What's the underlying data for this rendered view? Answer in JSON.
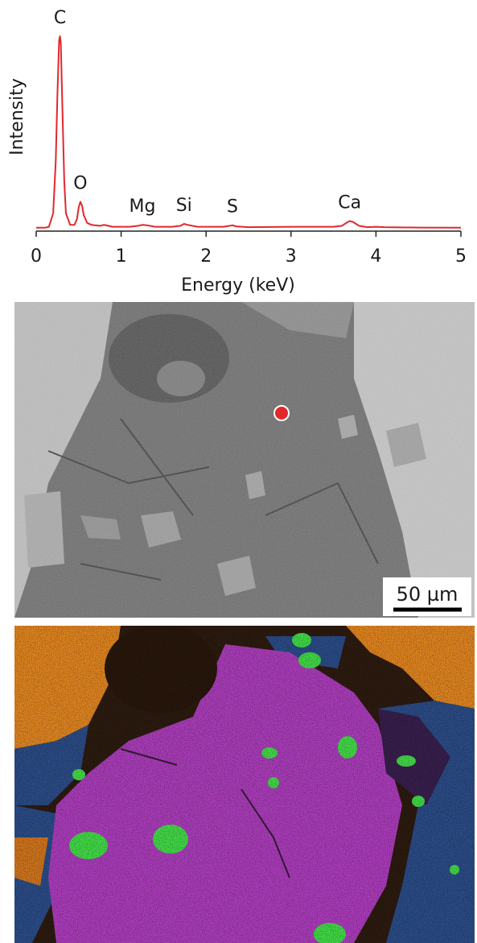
{
  "chart_data": {
    "type": "line",
    "xlabel": "Energy (keV)",
    "ylabel": "Intensity",
    "x": [
      0,
      0.1,
      0.15,
      0.2,
      0.23,
      0.25,
      0.27,
      0.28,
      0.29,
      0.31,
      0.33,
      0.35,
      0.4,
      0.45,
      0.48,
      0.5,
      0.52,
      0.54,
      0.56,
      0.6,
      0.65,
      0.75,
      0.8,
      0.9,
      1.1,
      1.2,
      1.25,
      1.3,
      1.4,
      1.6,
      1.7,
      1.74,
      1.78,
      1.9,
      2.2,
      2.28,
      2.31,
      2.35,
      2.5,
      3.0,
      3.5,
      3.6,
      3.65,
      3.69,
      3.73,
      3.8,
      3.9,
      4.0,
      4.1,
      4.5,
      5.0
    ],
    "values": [
      0.5,
      0.5,
      1,
      8,
      35,
      70,
      98,
      100,
      96,
      60,
      25,
      8,
      2,
      2,
      5,
      11,
      14,
      12,
      7,
      3,
      2,
      1.5,
      2,
      1,
      1,
      1.5,
      2,
      1.8,
      1,
      1,
      1.5,
      2.5,
      2,
      1,
      1,
      1.5,
      1.8,
      1.2,
      0.8,
      1,
      1,
      1.5,
      3,
      4,
      3.5,
      1.5,
      0.8,
      1,
      0.8,
      0.6,
      0.5
    ],
    "color": "#e2282c",
    "xlim": [
      0,
      5
    ],
    "xticks": [
      0,
      1,
      2,
      3,
      4,
      5
    ],
    "ylim": [
      0,
      100
    ],
    "annotations": [
      {
        "text": "C",
        "x": 0.28
      },
      {
        "text": "O",
        "x": 0.52
      },
      {
        "text": "Mg",
        "x": 1.25
      },
      {
        "text": "Si",
        "x": 1.74
      },
      {
        "text": "S",
        "x": 2.31
      },
      {
        "text": "Ca",
        "x": 3.69
      }
    ]
  },
  "sem_image": {
    "scale_bar": "50 µm"
  }
}
